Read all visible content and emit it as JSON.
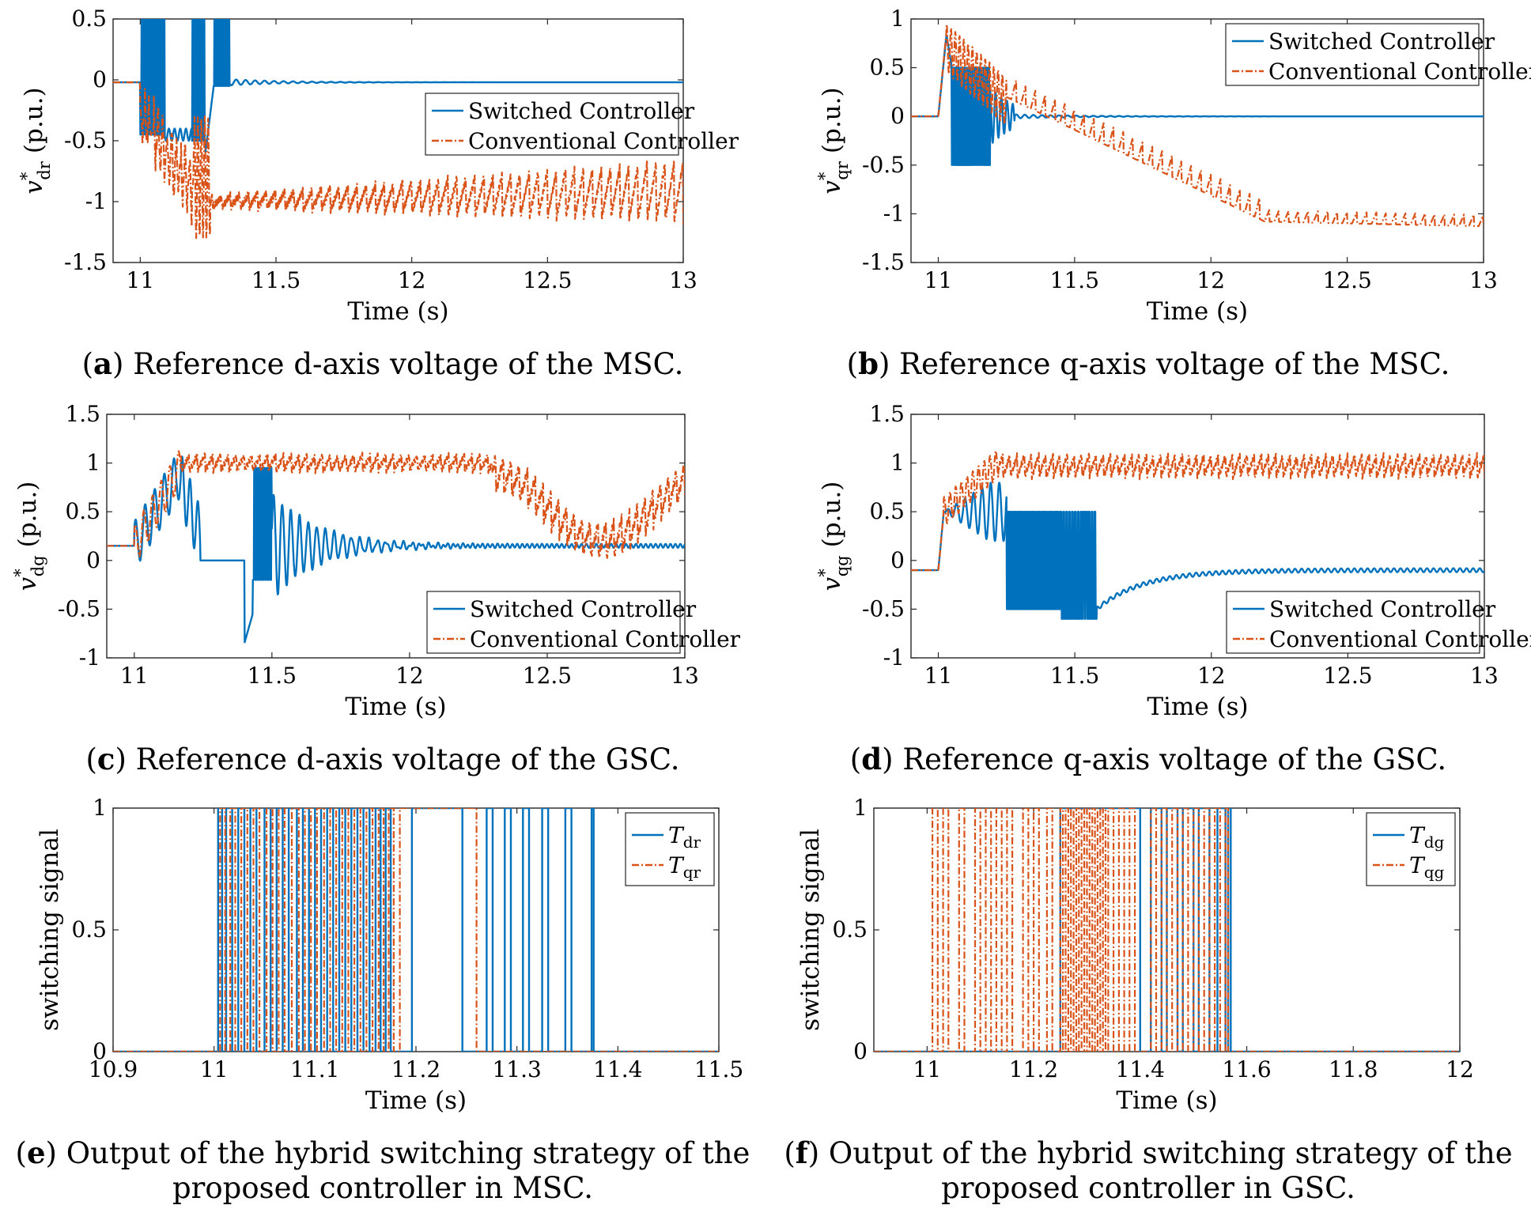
{
  "colors": {
    "switched": "#0072BD",
    "conventional": "#D95319",
    "axis": "#262626"
  },
  "panels": [
    {
      "id": "a",
      "caption_letter": "a",
      "caption_text": "Reference d-axis voltage of the MSC.",
      "caption_text_line2": "",
      "chart_data": {
        "type": "line",
        "xlabel": "Time (s)",
        "ylabel_main": "v",
        "ylabel_sup": "*",
        "ylabel_sub": "dr",
        "ylabel_unit": "(p.u.)",
        "xlim": [
          10.9,
          13
        ],
        "ylim": [
          -1.5,
          0.5
        ],
        "xticks": [
          11,
          11.5,
          12,
          12.5,
          13
        ],
        "xtick_labels": [
          "11",
          "11.5",
          "12",
          "12.5",
          "13"
        ],
        "yticks": [
          -1.5,
          -1,
          -0.5,
          0,
          0.5
        ],
        "ytick_labels": [
          "-1.5",
          "-1",
          "-0.5",
          "0",
          "0.5"
        ],
        "legend": "right-middle",
        "series": [
          {
            "name": "Switched Controller",
            "style": "solid",
            "gen": "a_sw"
          },
          {
            "name": "Conventional Controller",
            "style": "dashdot",
            "gen": "a_cv"
          }
        ]
      }
    },
    {
      "id": "b",
      "caption_letter": "b",
      "caption_text": "Reference q-axis voltage of the MSC.",
      "caption_text_line2": "",
      "chart_data": {
        "type": "line",
        "xlabel": "Time (s)",
        "ylabel_main": "v",
        "ylabel_sup": "*",
        "ylabel_sub": "qr",
        "ylabel_unit": "(p.u.)",
        "xlim": [
          10.9,
          13
        ],
        "ylim": [
          -1.5,
          1
        ],
        "xticks": [
          11,
          11.5,
          12,
          12.5,
          13
        ],
        "xtick_labels": [
          "11",
          "11.5",
          "12",
          "12.5",
          "13"
        ],
        "yticks": [
          -1.5,
          -1,
          -0.5,
          0,
          0.5,
          1
        ],
        "ytick_labels": [
          "-1.5",
          "-1",
          "-0.5",
          "0",
          "0.5",
          "1"
        ],
        "legend": "top-right",
        "series": [
          {
            "name": "Switched Controller",
            "style": "solid",
            "gen": "b_sw"
          },
          {
            "name": "Conventional Controller",
            "style": "dashdot",
            "gen": "b_cv"
          }
        ]
      }
    },
    {
      "id": "c",
      "caption_letter": "c",
      "caption_text": "Reference d-axis voltage of the GSC.",
      "caption_text_line2": "",
      "chart_data": {
        "type": "line",
        "xlabel": "Time (s)",
        "ylabel_main": "v",
        "ylabel_sup": "*",
        "ylabel_sub": "dg",
        "ylabel_unit": "(p.u.)",
        "xlim": [
          10.9,
          13
        ],
        "ylim": [
          -1,
          1.5
        ],
        "xticks": [
          11,
          11.5,
          12,
          12.5,
          13
        ],
        "xtick_labels": [
          "11",
          "11.5",
          "12",
          "12.5",
          "13"
        ],
        "yticks": [
          -1,
          -0.5,
          0,
          0.5,
          1,
          1.5
        ],
        "ytick_labels": [
          "-1",
          "-0.5",
          "0",
          "0.5",
          "1",
          "1.5"
        ],
        "legend": "bottom-right",
        "series": [
          {
            "name": "Switched Controller",
            "style": "solid",
            "gen": "c_sw"
          },
          {
            "name": "Conventional Controller",
            "style": "dashdot",
            "gen": "c_cv"
          }
        ]
      }
    },
    {
      "id": "d",
      "caption_letter": "d",
      "caption_text": "Reference q-axis voltage of the GSC.",
      "caption_text_line2": "",
      "chart_data": {
        "type": "line",
        "xlabel": "Time (s)",
        "ylabel_main": "v",
        "ylabel_sup": "*",
        "ylabel_sub": "qg",
        "ylabel_unit": "(p.u.)",
        "xlim": [
          10.9,
          13
        ],
        "ylim": [
          -1,
          1.5
        ],
        "xticks": [
          11,
          11.5,
          12,
          12.5,
          13
        ],
        "xtick_labels": [
          "11",
          "11.5",
          "12",
          "12.5",
          "13"
        ],
        "yticks": [
          -1,
          -0.5,
          0,
          0.5,
          1,
          1.5
        ],
        "ytick_labels": [
          "-1",
          "-0.5",
          "0",
          "0.5",
          "1",
          "1.5"
        ],
        "legend": "bottom-right",
        "series": [
          {
            "name": "Switched Controller",
            "style": "solid",
            "gen": "d_sw"
          },
          {
            "name": "Conventional Controller",
            "style": "dashdot",
            "gen": "d_cv"
          }
        ]
      }
    },
    {
      "id": "e",
      "caption_letter": "e",
      "caption_text": "Output of the hybrid switching strategy of the",
      "caption_text_line2": "proposed controller in MSC.",
      "chart_data": {
        "type": "line",
        "xlabel": "Time (s)",
        "ylabel_text": "switching signal",
        "xlim": [
          10.9,
          11.5
        ],
        "ylim": [
          0,
          1
        ],
        "xticks": [
          10.9,
          11,
          11.1,
          11.2,
          11.3,
          11.4,
          11.5
        ],
        "xtick_labels": [
          "10.9",
          "11",
          "11.1",
          "11.2",
          "11.3",
          "11.4",
          "11.5"
        ],
        "yticks": [
          0,
          0.5,
          1
        ],
        "ytick_labels": [
          "0",
          "0.5",
          "1"
        ],
        "legend": "top-right",
        "series": [
          {
            "name": "T",
            "name_sub": "dr",
            "style": "solid",
            "transitions": [
              11.004,
              11.008,
              11.012,
              11.018,
              11.024,
              11.03,
              11.036,
              11.042,
              11.05,
              11.056,
              11.062,
              11.068,
              11.074,
              11.082,
              11.088,
              11.094,
              11.1,
              11.106,
              11.112,
              11.118,
              11.124,
              11.13,
              11.136,
              11.142,
              11.148,
              11.154,
              11.16,
              11.165,
              11.17,
              11.175,
              11.196,
              11.246,
              11.27,
              11.276,
              11.288,
              11.294,
              11.306,
              11.312,
              11.325,
              11.331,
              11.348,
              11.354,
              11.374,
              11.376
            ]
          },
          {
            "name": "T",
            "name_sub": "qr",
            "style": "dashdot",
            "transitions": [
              11.006,
              11.011,
              11.016,
              11.021,
              11.027,
              11.033,
              11.039,
              11.045,
              11.052,
              11.058,
              11.064,
              11.07,
              11.077,
              11.084,
              11.09,
              11.096,
              11.102,
              11.109,
              11.115,
              11.121,
              11.127,
              11.133,
              11.139,
              11.145,
              11.151,
              11.157,
              11.163,
              11.168,
              11.173,
              11.178,
              11.184,
              11.26
            ]
          }
        ]
      }
    },
    {
      "id": "f",
      "caption_letter": "f",
      "caption_text": "Output of the hybrid switching strategy of the",
      "caption_text_line2": "proposed controller in GSC.",
      "chart_data": {
        "type": "line",
        "xlabel": "Time (s)",
        "ylabel_text": "switching signal",
        "xlim": [
          10.9,
          12
        ],
        "ylim": [
          0,
          1
        ],
        "xticks": [
          11,
          11.2,
          11.4,
          11.6,
          11.8,
          12
        ],
        "xtick_labels": [
          "11",
          "11.2",
          "11.4",
          "11.6",
          "11.8",
          "12"
        ],
        "yticks": [
          0,
          0.5,
          1
        ],
        "ytick_labels": [
          "0",
          "0.5",
          "1"
        ],
        "legend": "top-right",
        "series": [
          {
            "name": "T",
            "name_sub": "dg",
            "style": "solid",
            "transitions": [
              11.25,
              11.4,
              11.42,
              11.44,
              11.45,
              11.47,
              11.48,
              11.5,
              11.51,
              11.53,
              11.545,
              11.56,
              11.565,
              11.57
            ]
          },
          {
            "name": "T",
            "name_sub": "qg",
            "style": "dashdot",
            "transitions": [
              11.01,
              11.02,
              11.03,
              11.04,
              11.06,
              11.07,
              11.09,
              11.1,
              11.11,
              11.12,
              11.13,
              11.14,
              11.15,
              11.16,
              11.18,
              11.19,
              11.2,
              11.21,
              11.225,
              11.235,
              11.25,
              11.255,
              11.26,
              11.265,
              11.27,
              11.275,
              11.28,
              11.285,
              11.29,
              11.295,
              11.3,
              11.305,
              11.31,
              11.315,
              11.32,
              11.325,
              11.33,
              11.335,
              11.34,
              11.35,
              11.36,
              11.37,
              11.38,
              11.39,
              11.42,
              11.43,
              11.44,
              11.45,
              11.46,
              11.47,
              11.48,
              11.49,
              11.5,
              11.51,
              11.52,
              11.53,
              11.54,
              11.55,
              11.56,
              11.565
            ]
          }
        ]
      }
    }
  ]
}
